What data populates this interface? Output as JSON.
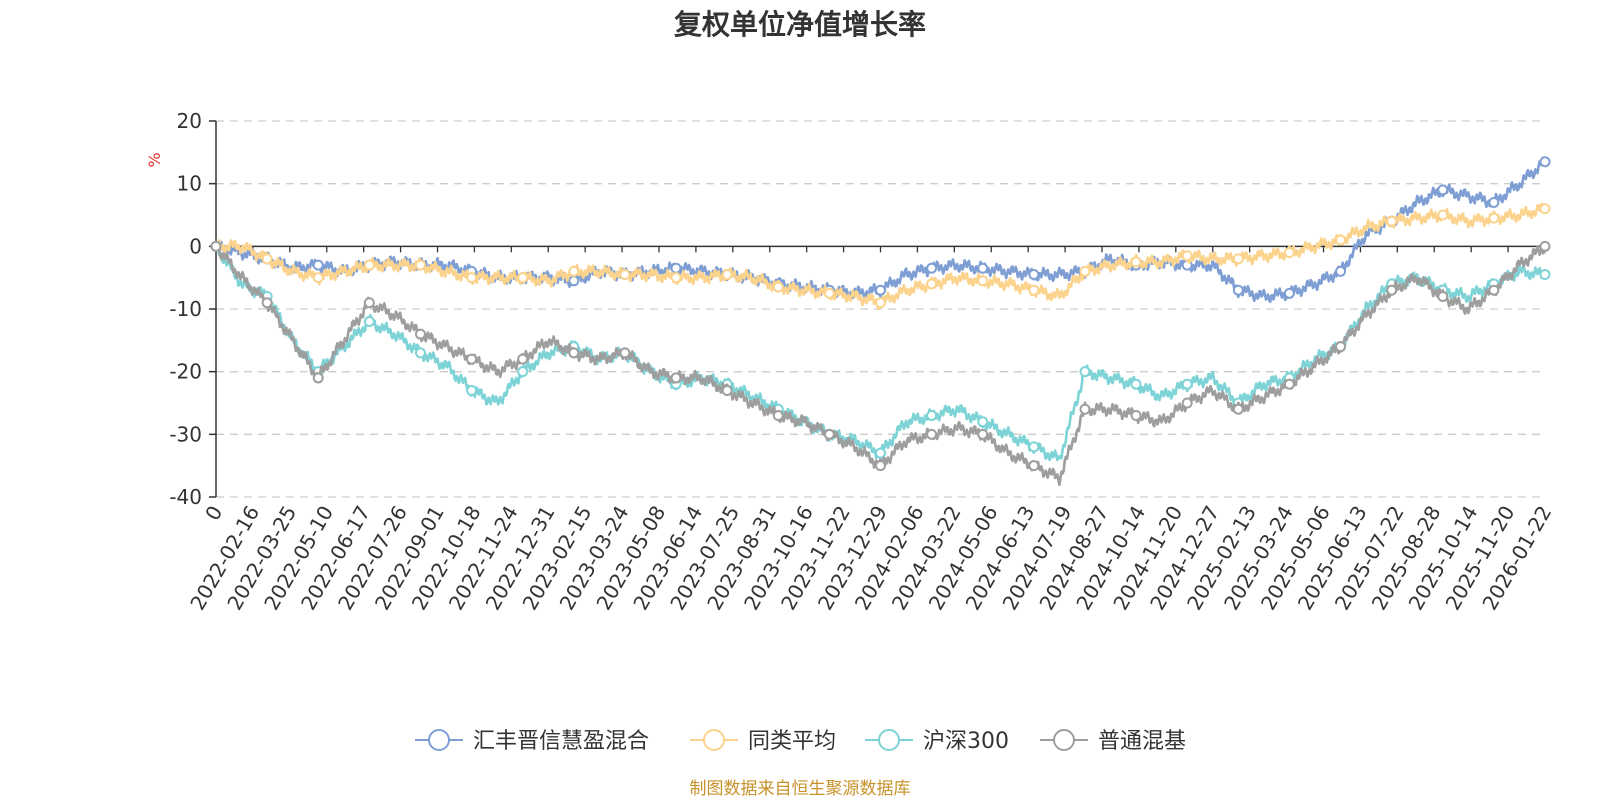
{
  "chart_data": {
    "type": "line",
    "title": "复权单位净值增长率",
    "ylabel": "%",
    "ylim": [
      -40,
      20
    ],
    "yticks": [
      20,
      10,
      0,
      -10,
      -20,
      -30,
      -40
    ],
    "grid": true,
    "legend_position": "bottom-center",
    "x_tick_labels": [
      "0",
      "2022-02-16",
      "2022-03-25",
      "2022-05-10",
      "2022-06-17",
      "2022-07-26",
      "2022-09-01",
      "2022-10-18",
      "2022-11-24",
      "2022-12-31",
      "2023-02-15",
      "2023-03-24",
      "2023-05-08",
      "2023-06-14",
      "2023-07-25",
      "2023-08-31",
      "2023-10-16",
      "2023-11-22",
      "2023-12-29",
      "2024-02-06",
      "2024-03-22",
      "2024-05-06",
      "2024-06-13",
      "2024-07-19",
      "2024-08-27",
      "2024-10-14",
      "2024-11-20",
      "2024-12-27",
      "2025-02-13",
      "2025-03-24",
      "2025-05-06",
      "2025-06-13",
      "2025-07-22",
      "2025-08-28",
      "2025-10-14",
      "2025-11-20",
      "2026-01-22"
    ],
    "series": [
      {
        "name": "汇丰晋信慧盈混合",
        "color": "#7f9fd4",
        "values": [
          0,
          -1,
          -2,
          -3.5,
          -3,
          -4,
          -3,
          -2.5,
          -3,
          -3,
          -4,
          -5,
          -5,
          -5,
          -5.5,
          -4,
          -4.5,
          -4,
          -3.5,
          -4,
          -4.5,
          -5,
          -6,
          -6.5,
          -7,
          -7.5,
          -7,
          -4.5,
          -3.5,
          -3,
          -3.5,
          -4,
          -4.5,
          -4.5,
          -4,
          -2,
          -3,
          -2.5,
          -3,
          -3,
          -7,
          -8,
          -7.5,
          -6,
          -4,
          2,
          4,
          7,
          9,
          8,
          7,
          10,
          13.5
        ]
      },
      {
        "name": "同类平均",
        "color": "#fbd38d",
        "values": [
          0,
          0,
          -2,
          -4,
          -5,
          -4,
          -3,
          -3,
          -3,
          -4,
          -5,
          -5,
          -5,
          -5.5,
          -4,
          -4,
          -4.5,
          -4.5,
          -5,
          -5,
          -4.5,
          -5,
          -6.5,
          -7,
          -7.5,
          -8,
          -9,
          -7,
          -6,
          -5,
          -5.5,
          -6,
          -7,
          -8,
          -4,
          -3,
          -2.5,
          -2.5,
          -1.5,
          -2,
          -2,
          -1.5,
          -1,
          0,
          1,
          3,
          4,
          4.5,
          5,
          4,
          4.5,
          5,
          6
        ]
      },
      {
        "name": "沪深300",
        "color": "#7dd3d6",
        "values": [
          0,
          -6,
          -8,
          -15,
          -20,
          -16,
          -12,
          -14,
          -17,
          -19,
          -23,
          -25,
          -20,
          -17,
          -16,
          -18,
          -17,
          -20,
          -22,
          -21,
          -22,
          -24,
          -26,
          -28,
          -30,
          -31,
          -33,
          -28,
          -27,
          -26,
          -28,
          -30,
          -32,
          -34,
          -20,
          -21,
          -22,
          -24,
          -22,
          -21,
          -25,
          -22,
          -21,
          -18,
          -16,
          -10,
          -6,
          -5,
          -7,
          -8,
          -6,
          -4,
          -4.5
        ]
      },
      {
        "name": "普通混基",
        "color": "#9e9e9e",
        "values": [
          0,
          -5,
          -9,
          -15,
          -21,
          -15,
          -9,
          -11,
          -14,
          -16,
          -18,
          -20,
          -18,
          -15,
          -17,
          -18,
          -17,
          -20,
          -21,
          -21,
          -23,
          -25,
          -27,
          -28,
          -30,
          -32,
          -35,
          -31,
          -30,
          -29,
          -30,
          -33,
          -35,
          -37,
          -26,
          -26,
          -27,
          -28,
          -25,
          -23,
          -26,
          -24,
          -22,
          -19,
          -16,
          -11,
          -7,
          -5,
          -8,
          -10,
          -7,
          -3,
          0
        ]
      }
    ]
  },
  "source_note": "制图数据来自恒生聚源数据库"
}
